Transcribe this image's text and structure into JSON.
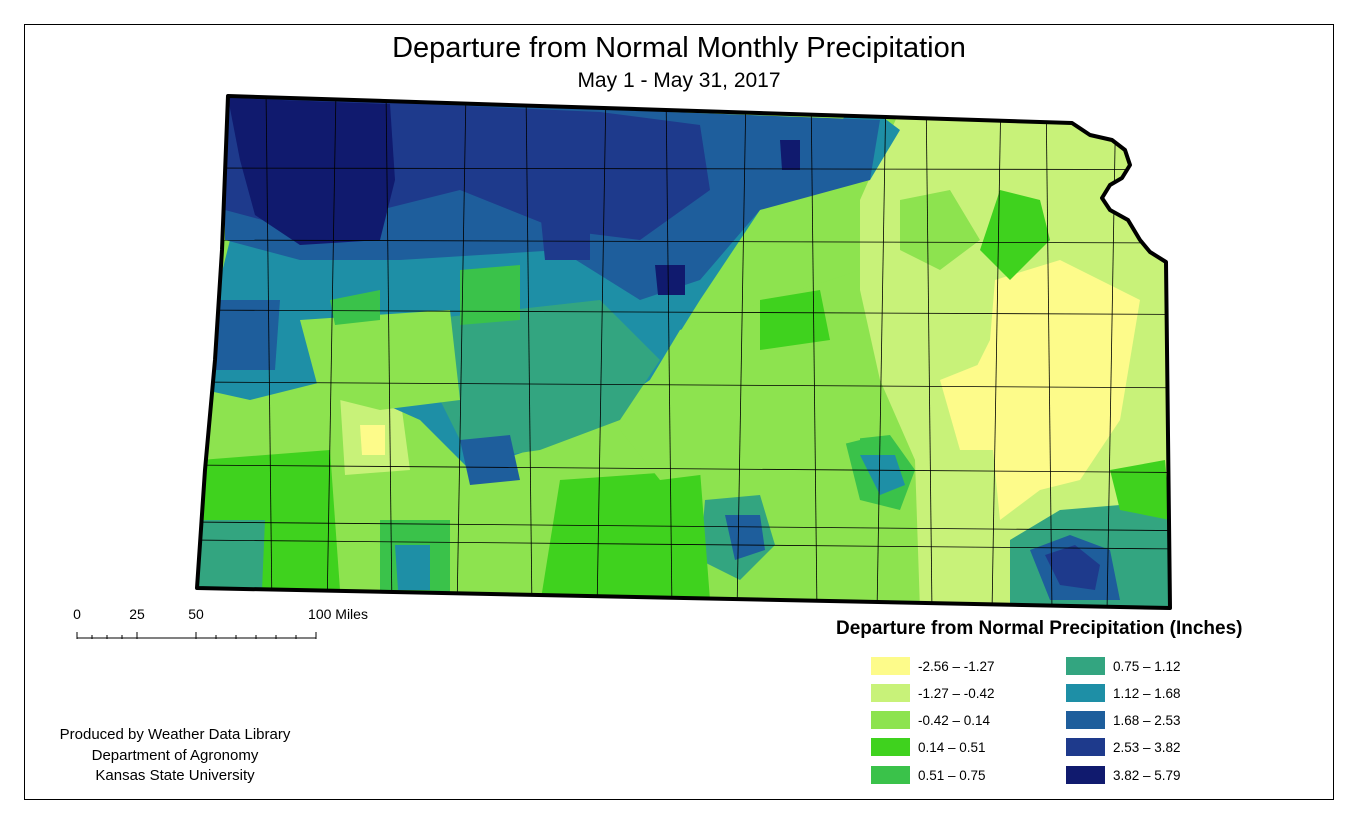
{
  "header": {
    "title": "Departure from Normal Monthly Precipitation",
    "subtitle": "May 1 - May 31, 2017"
  },
  "scale_bar": {
    "labels": [
      "0",
      "25",
      "50",
      "100 Miles"
    ]
  },
  "credits": {
    "line1": "Produced by Weather Data Library",
    "line2": "Department of Agronomy",
    "line3": "Kansas State University"
  },
  "legend": {
    "title": "Departure from Normal Precipitation (Inches)",
    "classes": [
      {
        "label": "-2.56 – -1.27",
        "color": "#fdfb8a"
      },
      {
        "label": "-1.27 – -0.42",
        "color": "#c8f279"
      },
      {
        "label": "-0.42 – 0.14",
        "color": "#8de34f"
      },
      {
        "label": "0.14 – 0.51",
        "color": "#3fd21e"
      },
      {
        "label": "0.51 – 0.75",
        "color": "#3ac24a"
      },
      {
        "label": "0.75 – 1.12",
        "color": "#33a580"
      },
      {
        "label": "1.12 – 1.68",
        "color": "#1e8fa6"
      },
      {
        "label": "1.68 – 2.53",
        "color": "#1e5e9c"
      },
      {
        "label": "2.53 – 3.82",
        "color": "#1e3a8c"
      },
      {
        "label": "3.82 – 5.79",
        "color": "#101a6e"
      }
    ]
  },
  "map_colors": {
    "outline": "#000000",
    "county_lines": "#000000"
  }
}
